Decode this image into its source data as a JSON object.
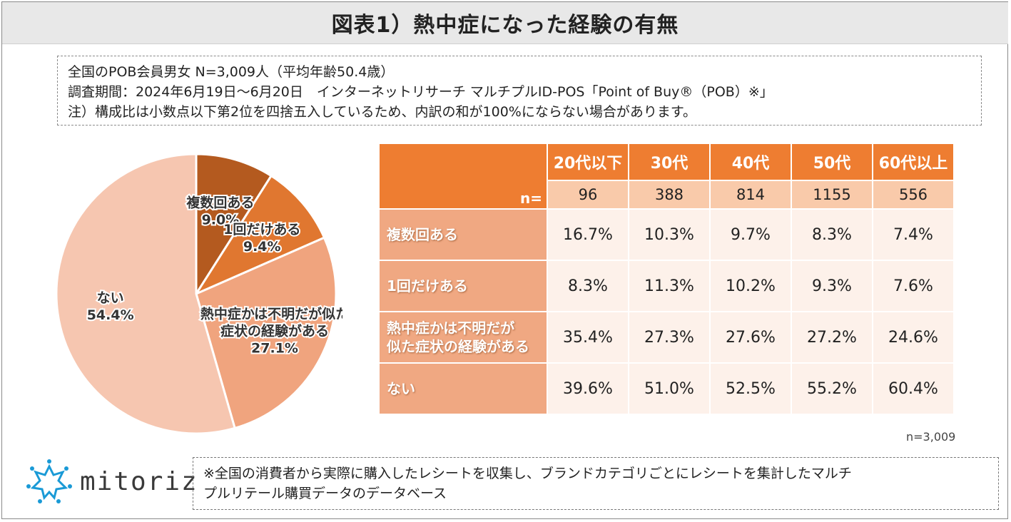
{
  "title": "図表1）熱中症になった経験の有無",
  "info": {
    "line1": "全国のPOB会員男女 N=3,009人（平均年齢50.4歳）",
    "line2": "調査期間：2024年6月19日～6月20日　インターネットリサーチ マルチプルID-POS「Point of Buy®（POB）※」",
    "line3": "注）構成比は小数点以下第2位を四捨五入しているため、内訳の和が100%にならない場合があります。"
  },
  "chart_data": [
    {
      "type": "pie",
      "title": "",
      "slices": [
        {
          "label": "複数回ある",
          "value": 9.0,
          "value_label": "9.0%",
          "color": "#b45a1f"
        },
        {
          "label": "1回だけある",
          "value": 9.4,
          "value_label": "9.4%",
          "color": "#e07730"
        },
        {
          "label": "熱中症かは不明だが似た症状の経験がある",
          "label_lines": [
            "熱中症かは不明だが似た",
            "症状の経験がある"
          ],
          "value": 27.1,
          "value_label": "27.1%",
          "color": "#f0a47e"
        },
        {
          "label": "ない",
          "value": 54.4,
          "value_label": "54.4%",
          "color": "#f6c6b0"
        }
      ]
    },
    {
      "type": "table",
      "n_label": "n=",
      "columns": [
        "20代以下",
        "30代",
        "40代",
        "50代",
        "60代以上"
      ],
      "n_values": [
        "96",
        "388",
        "814",
        "1155",
        "556"
      ],
      "rows": [
        {
          "label_lines": [
            "複数回ある"
          ],
          "values": [
            "16.7%",
            "10.3%",
            "9.7%",
            "8.3%",
            "7.4%"
          ]
        },
        {
          "label_lines": [
            "1回だけある"
          ],
          "values": [
            "8.3%",
            "11.3%",
            "10.2%",
            "9.3%",
            "7.6%"
          ]
        },
        {
          "label_lines": [
            "熱中症かは不明だが",
            "似た症状の経験がある"
          ],
          "values": [
            "35.4%",
            "27.3%",
            "27.6%",
            "27.2%",
            "24.6%"
          ]
        },
        {
          "label_lines": [
            "ない"
          ],
          "values": [
            "39.6%",
            "51.0%",
            "52.5%",
            "55.2%",
            "60.4%"
          ]
        }
      ]
    }
  ],
  "n_total": "n=3,009",
  "logo": {
    "text": "mitoriz"
  },
  "note": {
    "line1": "※全国の消費者から実際に購入したレシートを収集し、ブランドカテゴリごとにレシートを集計したマルチ",
    "line2": "プルリテール購買データのデータベース"
  }
}
